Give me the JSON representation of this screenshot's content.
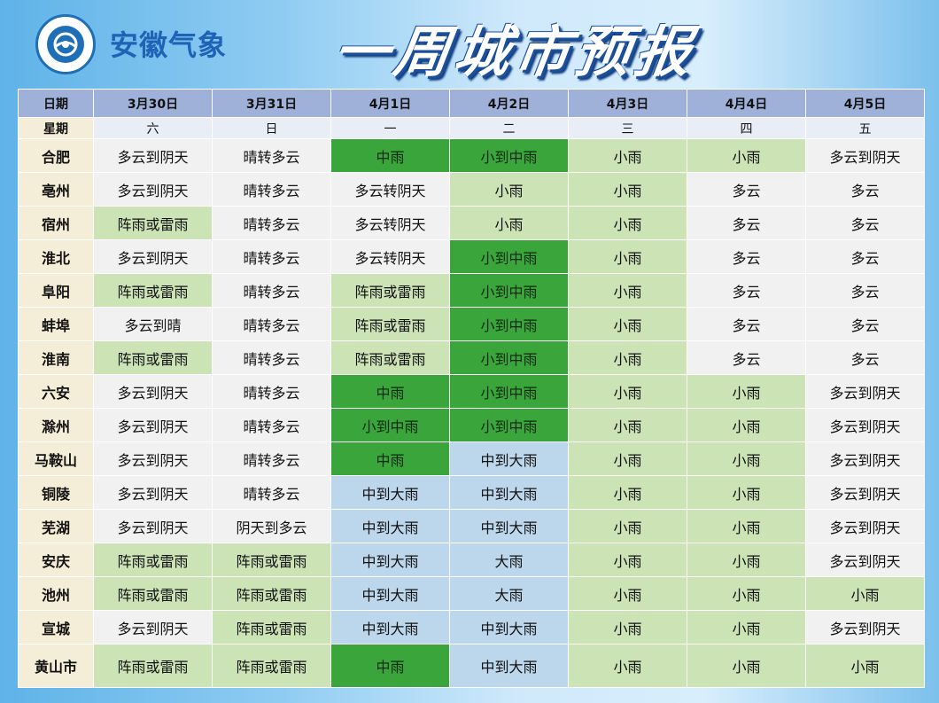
{
  "header": {
    "org_name": "安徽气象",
    "title": "一周城市预报",
    "logo_icon": "cma-logo-icon"
  },
  "table": {
    "date_label": "日期",
    "week_label": "星期",
    "dates": [
      "3月30日",
      "3月31日",
      "4月1日",
      "4月2日",
      "4月3日",
      "4月4日",
      "4月5日"
    ],
    "weekdays": [
      "六",
      "日",
      "一",
      "二",
      "三",
      "四",
      "五"
    ],
    "colors": {
      "none": "#f1f1f1",
      "light_rain": "#cce3b6",
      "moderate_rain": "#3aa53a",
      "heavy_rain": "#bcd6ec",
      "header": "#9fb0d9",
      "row_header": "#f4eed8"
    },
    "rows": [
      {
        "city": "合肥",
        "cells": [
          {
            "t": "多云到阴天",
            "c": "w-none"
          },
          {
            "t": "晴转多云",
            "c": "w-none"
          },
          {
            "t": "中雨",
            "c": "w-mod"
          },
          {
            "t": "小到中雨",
            "c": "w-mod"
          },
          {
            "t": "小雨",
            "c": "w-light"
          },
          {
            "t": "小雨",
            "c": "w-light"
          },
          {
            "t": "多云到阴天",
            "c": "w-none"
          }
        ]
      },
      {
        "city": "亳州",
        "cells": [
          {
            "t": "多云到阴天",
            "c": "w-none"
          },
          {
            "t": "晴转多云",
            "c": "w-none"
          },
          {
            "t": "多云转阴天",
            "c": "w-none"
          },
          {
            "t": "小雨",
            "c": "w-light"
          },
          {
            "t": "小雨",
            "c": "w-light"
          },
          {
            "t": "多云",
            "c": "w-none"
          },
          {
            "t": "多云",
            "c": "w-none"
          }
        ]
      },
      {
        "city": "宿州",
        "cells": [
          {
            "t": "阵雨或雷雨",
            "c": "w-light"
          },
          {
            "t": "晴转多云",
            "c": "w-none"
          },
          {
            "t": "多云转阴天",
            "c": "w-none"
          },
          {
            "t": "小雨",
            "c": "w-light"
          },
          {
            "t": "小雨",
            "c": "w-light"
          },
          {
            "t": "多云",
            "c": "w-none"
          },
          {
            "t": "多云",
            "c": "w-none"
          }
        ]
      },
      {
        "city": "淮北",
        "cells": [
          {
            "t": "多云到阴天",
            "c": "w-none"
          },
          {
            "t": "晴转多云",
            "c": "w-none"
          },
          {
            "t": "多云转阴天",
            "c": "w-none"
          },
          {
            "t": "小到中雨",
            "c": "w-mod"
          },
          {
            "t": "小雨",
            "c": "w-light"
          },
          {
            "t": "多云",
            "c": "w-none"
          },
          {
            "t": "多云",
            "c": "w-none"
          }
        ]
      },
      {
        "city": "阜阳",
        "cells": [
          {
            "t": "阵雨或雷雨",
            "c": "w-light"
          },
          {
            "t": "晴转多云",
            "c": "w-none"
          },
          {
            "t": "阵雨或雷雨",
            "c": "w-light"
          },
          {
            "t": "小到中雨",
            "c": "w-mod"
          },
          {
            "t": "小雨",
            "c": "w-light"
          },
          {
            "t": "多云",
            "c": "w-none"
          },
          {
            "t": "多云",
            "c": "w-none"
          }
        ]
      },
      {
        "city": "蚌埠",
        "cells": [
          {
            "t": "多云到晴",
            "c": "w-none"
          },
          {
            "t": "晴转多云",
            "c": "w-none"
          },
          {
            "t": "阵雨或雷雨",
            "c": "w-light"
          },
          {
            "t": "小到中雨",
            "c": "w-mod"
          },
          {
            "t": "小雨",
            "c": "w-light"
          },
          {
            "t": "多云",
            "c": "w-none"
          },
          {
            "t": "多云",
            "c": "w-none"
          }
        ]
      },
      {
        "city": "淮南",
        "cells": [
          {
            "t": "阵雨或雷雨",
            "c": "w-light"
          },
          {
            "t": "晴转多云",
            "c": "w-none"
          },
          {
            "t": "阵雨或雷雨",
            "c": "w-light"
          },
          {
            "t": "小到中雨",
            "c": "w-mod"
          },
          {
            "t": "小雨",
            "c": "w-light"
          },
          {
            "t": "多云",
            "c": "w-none"
          },
          {
            "t": "多云",
            "c": "w-none"
          }
        ]
      },
      {
        "city": "六安",
        "cells": [
          {
            "t": "多云到阴天",
            "c": "w-none"
          },
          {
            "t": "晴转多云",
            "c": "w-none"
          },
          {
            "t": "中雨",
            "c": "w-mod"
          },
          {
            "t": "小到中雨",
            "c": "w-mod"
          },
          {
            "t": "小雨",
            "c": "w-light"
          },
          {
            "t": "小雨",
            "c": "w-light"
          },
          {
            "t": "多云到阴天",
            "c": "w-none"
          }
        ]
      },
      {
        "city": "滁州",
        "cells": [
          {
            "t": "多云到阴天",
            "c": "w-none"
          },
          {
            "t": "晴转多云",
            "c": "w-none"
          },
          {
            "t": "小到中雨",
            "c": "w-mod"
          },
          {
            "t": "小到中雨",
            "c": "w-mod"
          },
          {
            "t": "小雨",
            "c": "w-light"
          },
          {
            "t": "小雨",
            "c": "w-light"
          },
          {
            "t": "多云到阴天",
            "c": "w-none"
          }
        ]
      },
      {
        "city": "马鞍山",
        "cells": [
          {
            "t": "多云到阴天",
            "c": "w-none"
          },
          {
            "t": "晴转多云",
            "c": "w-none"
          },
          {
            "t": "中雨",
            "c": "w-mod"
          },
          {
            "t": "中到大雨",
            "c": "w-heavy"
          },
          {
            "t": "小雨",
            "c": "w-light"
          },
          {
            "t": "小雨",
            "c": "w-light"
          },
          {
            "t": "多云到阴天",
            "c": "w-none"
          }
        ]
      },
      {
        "city": "铜陵",
        "cells": [
          {
            "t": "多云到阴天",
            "c": "w-none"
          },
          {
            "t": "晴转多云",
            "c": "w-none"
          },
          {
            "t": "中到大雨",
            "c": "w-heavy"
          },
          {
            "t": "中到大雨",
            "c": "w-heavy"
          },
          {
            "t": "小雨",
            "c": "w-light"
          },
          {
            "t": "小雨",
            "c": "w-light"
          },
          {
            "t": "多云到阴天",
            "c": "w-none"
          }
        ]
      },
      {
        "city": "芜湖",
        "cells": [
          {
            "t": "多云到阴天",
            "c": "w-none"
          },
          {
            "t": "阴天到多云",
            "c": "w-none"
          },
          {
            "t": "中到大雨",
            "c": "w-heavy"
          },
          {
            "t": "中到大雨",
            "c": "w-heavy"
          },
          {
            "t": "小雨",
            "c": "w-light"
          },
          {
            "t": "小雨",
            "c": "w-light"
          },
          {
            "t": "多云到阴天",
            "c": "w-none"
          }
        ]
      },
      {
        "city": "安庆",
        "cells": [
          {
            "t": "阵雨或雷雨",
            "c": "w-light"
          },
          {
            "t": "阵雨或雷雨",
            "c": "w-light"
          },
          {
            "t": "中到大雨",
            "c": "w-heavy"
          },
          {
            "t": "大雨",
            "c": "w-heavy"
          },
          {
            "t": "小雨",
            "c": "w-light"
          },
          {
            "t": "小雨",
            "c": "w-light"
          },
          {
            "t": "多云到阴天",
            "c": "w-none"
          }
        ]
      },
      {
        "city": "池州",
        "cells": [
          {
            "t": "阵雨或雷雨",
            "c": "w-light"
          },
          {
            "t": "阵雨或雷雨",
            "c": "w-light"
          },
          {
            "t": "中到大雨",
            "c": "w-heavy"
          },
          {
            "t": "大雨",
            "c": "w-heavy"
          },
          {
            "t": "小雨",
            "c": "w-light"
          },
          {
            "t": "小雨",
            "c": "w-light"
          },
          {
            "t": "小雨",
            "c": "w-light"
          }
        ]
      },
      {
        "city": "宣城",
        "cells": [
          {
            "t": "多云到阴天",
            "c": "w-none"
          },
          {
            "t": "阵雨或雷雨",
            "c": "w-light"
          },
          {
            "t": "中到大雨",
            "c": "w-heavy"
          },
          {
            "t": "中到大雨",
            "c": "w-heavy"
          },
          {
            "t": "小雨",
            "c": "w-light"
          },
          {
            "t": "小雨",
            "c": "w-light"
          },
          {
            "t": "多云到阴天",
            "c": "w-none"
          }
        ]
      },
      {
        "city": "黄山市",
        "cells": [
          {
            "t": "阵雨或雷雨",
            "c": "w-light"
          },
          {
            "t": "阵雨或雷雨",
            "c": "w-light"
          },
          {
            "t": "中雨",
            "c": "w-mod"
          },
          {
            "t": "中到大雨",
            "c": "w-heavy"
          },
          {
            "t": "小雨",
            "c": "w-light"
          },
          {
            "t": "小雨",
            "c": "w-light"
          },
          {
            "t": "小雨",
            "c": "w-light"
          }
        ]
      }
    ]
  }
}
